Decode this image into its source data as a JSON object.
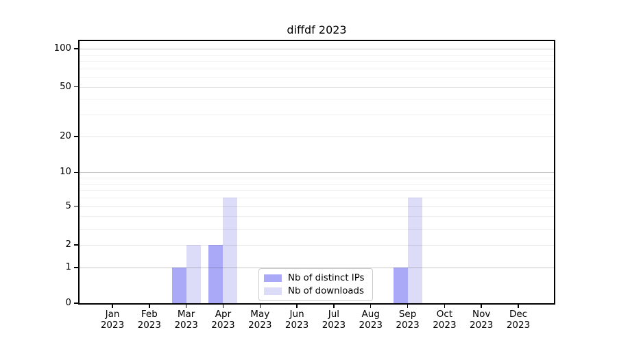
{
  "figure": {
    "title": "diffdf 2023",
    "background_color": "#ffffff",
    "spine_color": "#000000"
  },
  "chart_data": {
    "type": "bar",
    "title": "diffdf 2023",
    "categories": [
      "Jan 2023",
      "Feb 2023",
      "Mar 2023",
      "Apr 2023",
      "May 2023",
      "Jun 2023",
      "Jul 2023",
      "Aug 2023",
      "Sep 2023",
      "Oct 2023",
      "Nov 2023",
      "Dec 2023"
    ],
    "series": [
      {
        "name": "Nb of distinct IPs",
        "color": "#a9a9f8",
        "values": [
          0,
          0,
          1,
          2,
          0,
          0,
          0,
          0,
          1,
          0,
          0,
          0
        ]
      },
      {
        "name": "Nb of downloads",
        "color": "#dcdcf8",
        "values": [
          0,
          0,
          2,
          6,
          0,
          0,
          0,
          0,
          6,
          0,
          0,
          0
        ]
      }
    ],
    "xlabel": "",
    "ylabel": "",
    "y_axis": {
      "scale": "log1p",
      "ticks": [
        0,
        1,
        2,
        5,
        10,
        20,
        50,
        100
      ],
      "minor_ticks": [
        3,
        4,
        6,
        7,
        8,
        9,
        30,
        40,
        60,
        70,
        80,
        90
      ],
      "ylim": [
        0,
        116
      ]
    },
    "grid": true,
    "grid_colors": {
      "power10": "rgba(0,0,0,0.22)",
      "labeled": "rgba(0,0,0,0.10)",
      "minor": "rgba(0,0,0,0.055)"
    },
    "legend_position": "lower center"
  }
}
